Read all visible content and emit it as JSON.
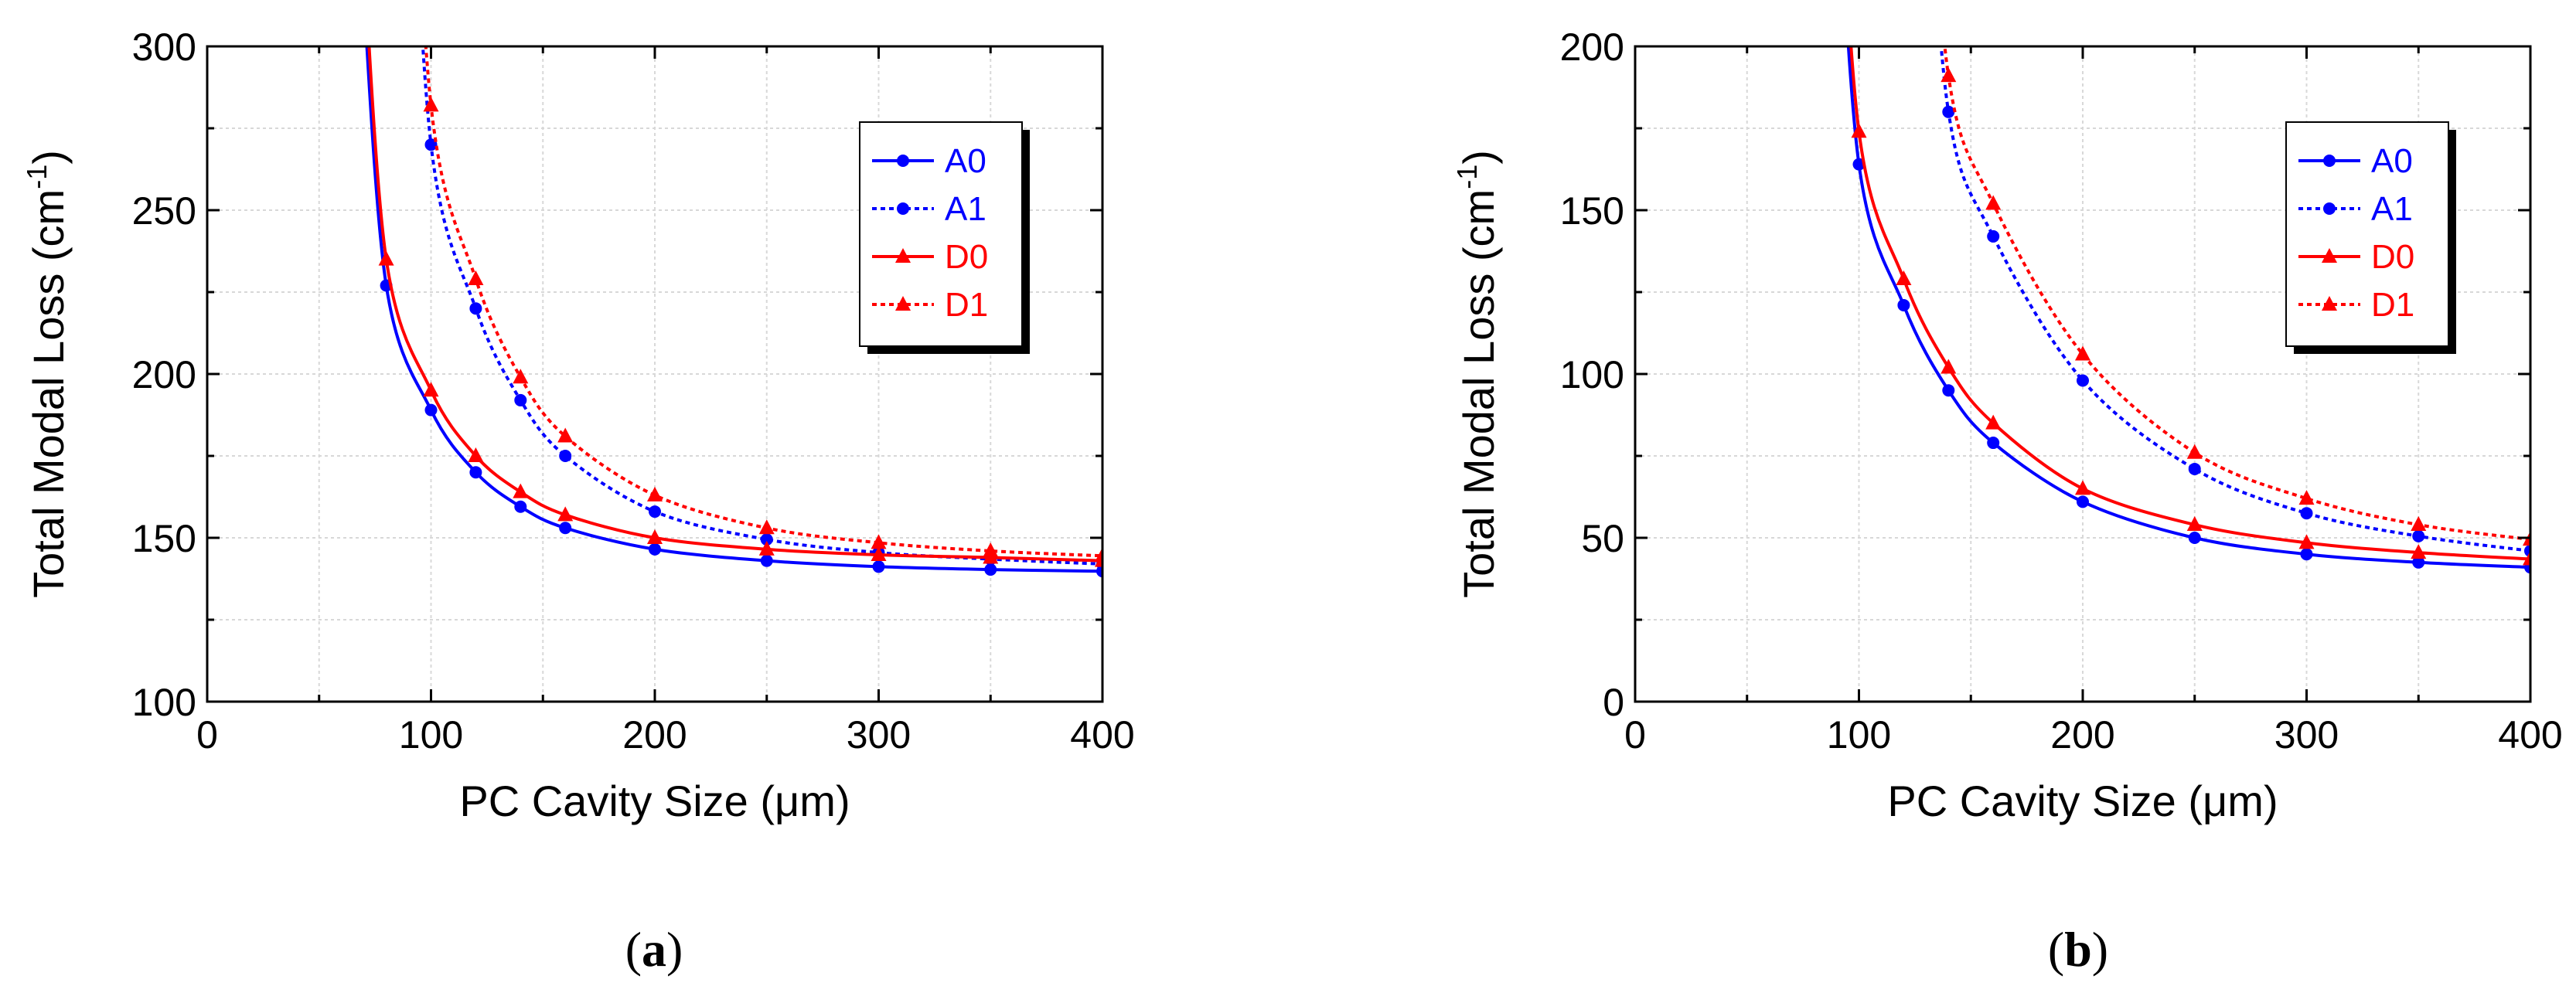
{
  "figure": {
    "captions": [
      "(a)",
      "(b)"
    ],
    "caption_parts": [
      {
        "open": "(",
        "letter": "a",
        "close": ")"
      },
      {
        "open": "(",
        "letter": "b",
        "close": ")"
      }
    ]
  },
  "chart_data": [
    {
      "type": "line",
      "title": "",
      "xlabel": "PC Cavity Size (μm)",
      "ylabel": "Total Modal Loss (cm-1)",
      "ylabel_parts": {
        "base": "Total Modal Loss (cm",
        "sup": "-1",
        "close": ")"
      },
      "xlim": [
        0,
        400
      ],
      "ylim": [
        100,
        300
      ],
      "xticks": [
        0,
        100,
        200,
        300,
        400
      ],
      "yticks": [
        100,
        150,
        200,
        250,
        300
      ],
      "grid": true,
      "legend": "top-right",
      "colors": {
        "A": "#0000ff",
        "D": "#ff0000"
      },
      "series": [
        {
          "name": "A0",
          "line": "solid",
          "marker": "circle",
          "color": "#0000ff",
          "x": [
            80,
            100,
            120,
            140,
            160,
            200,
            250,
            300,
            350,
            400
          ],
          "y": [
            227,
            189,
            170,
            159.5,
            153,
            146.5,
            143,
            141.2,
            140.3,
            139.8
          ]
        },
        {
          "name": "A1",
          "line": "dotted",
          "marker": "circle",
          "color": "#0000ff",
          "x": [
            100,
            120,
            140,
            160,
            200,
            250,
            300,
            350,
            400
          ],
          "y": [
            270,
            220,
            192,
            175,
            158,
            149.5,
            145.5,
            143.5,
            142
          ]
        },
        {
          "name": "D0",
          "line": "solid",
          "marker": "triangle",
          "color": "#ff0000",
          "x": [
            80,
            100,
            120,
            140,
            160,
            200,
            250,
            300,
            350,
            400
          ],
          "y": [
            235,
            195,
            175,
            164,
            157,
            150,
            146.5,
            144.8,
            144,
            143
          ]
        },
        {
          "name": "D1",
          "line": "dotted",
          "marker": "triangle",
          "color": "#ff0000",
          "x": [
            100,
            120,
            140,
            160,
            200,
            250,
            300,
            350,
            400
          ],
          "y": [
            282,
            229,
            199,
            181,
            163,
            153,
            148.5,
            146,
            144.5
          ]
        }
      ]
    },
    {
      "type": "line",
      "title": "",
      "xlabel": "PC Cavity Size (μm)",
      "ylabel": "Total Modal Loss (cm-1)",
      "ylabel_parts": {
        "base": "Total Modal Loss (cm",
        "sup": "-1",
        "close": ")"
      },
      "xlim": [
        0,
        400
      ],
      "ylim": [
        0,
        200
      ],
      "xticks": [
        0,
        100,
        200,
        300,
        400
      ],
      "yticks": [
        0,
        50,
        100,
        150,
        200
      ],
      "grid": true,
      "legend": "top-right",
      "colors": {
        "A": "#0000ff",
        "D": "#ff0000"
      },
      "series": [
        {
          "name": "A0",
          "line": "solid",
          "marker": "circle",
          "color": "#0000ff",
          "x": [
            100,
            120,
            140,
            160,
            200,
            250,
            300,
            350,
            400
          ],
          "y": [
            164,
            121,
            95,
            79,
            61,
            50,
            45,
            42.5,
            41
          ]
        },
        {
          "name": "A1",
          "line": "dotted",
          "marker": "circle",
          "color": "#0000ff",
          "x": [
            140,
            160,
            200,
            250,
            300,
            350,
            400
          ],
          "y": [
            180,
            142,
            98,
            71,
            57.5,
            50.5,
            46
          ]
        },
        {
          "name": "D0",
          "line": "solid",
          "marker": "triangle",
          "color": "#ff0000",
          "x": [
            100,
            120,
            140,
            160,
            200,
            250,
            300,
            350,
            400
          ],
          "y": [
            174,
            129,
            102,
            85,
            65,
            54,
            48.5,
            45.5,
            43.5
          ]
        },
        {
          "name": "D1",
          "line": "dotted",
          "marker": "triangle",
          "color": "#ff0000",
          "x": [
            140,
            160,
            200,
            250,
            300,
            350,
            400
          ],
          "y": [
            191,
            152,
            106,
            76,
            62,
            54,
            49.5
          ]
        }
      ]
    }
  ]
}
